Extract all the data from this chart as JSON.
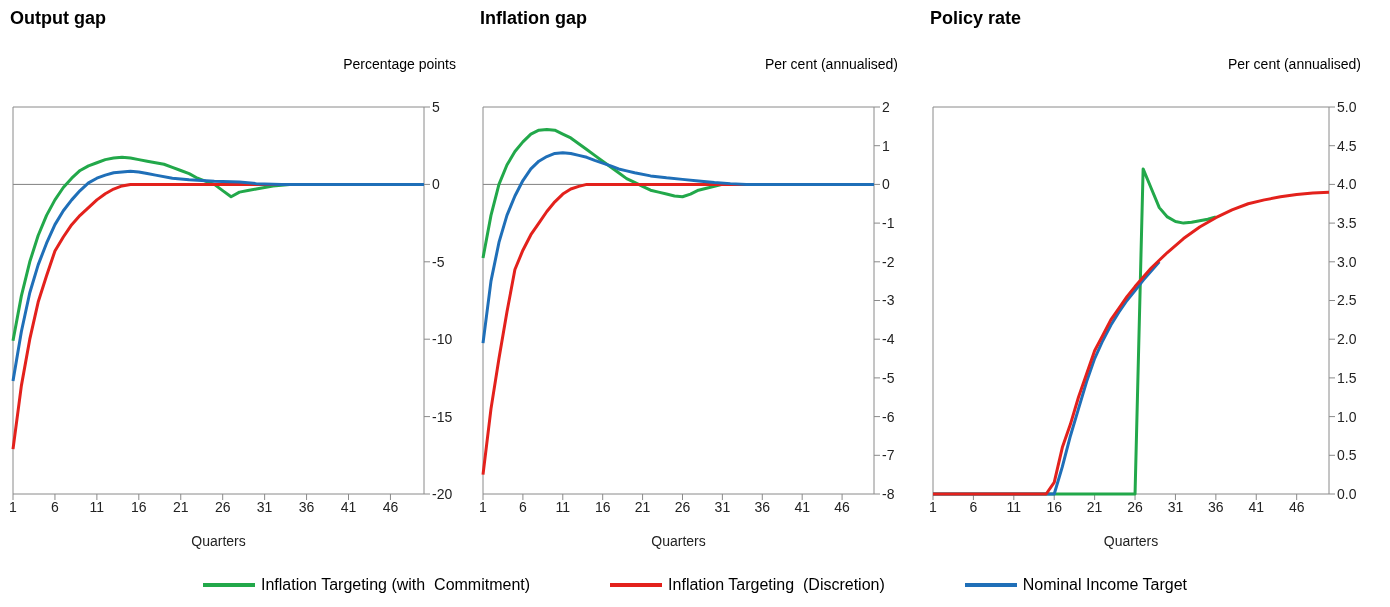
{
  "chart_data": [
    {
      "type": "line",
      "title": "Output gap",
      "xlabel": "Quarters",
      "ylabel": "Percentage points",
      "xlim": [
        1,
        50
      ],
      "xticks": [
        1,
        6,
        11,
        16,
        21,
        26,
        31,
        36,
        41,
        46
      ],
      "ylim": [
        -20,
        5
      ],
      "yticks": [
        -20,
        -15,
        -10,
        -5,
        0,
        5
      ],
      "grid": false,
      "legend": "bottom",
      "marker": "none",
      "line_style": "solid",
      "ref_lines": [
        {
          "axis": "y",
          "value": 0,
          "color": "#808080"
        }
      ],
      "series": [
        {
          "name": "Inflation Targeting (with  Commitment)",
          "color": "#22a84a",
          "x": [
            1,
            2,
            3,
            4,
            5,
            6,
            7,
            8,
            9,
            10,
            11,
            12,
            13,
            14,
            15,
            16,
            17,
            18,
            19,
            20,
            21,
            22,
            23,
            24,
            25,
            26,
            27,
            28,
            29,
            30,
            31,
            32,
            34,
            50
          ],
          "values": [
            -10.1,
            -7.2,
            -5.0,
            -3.3,
            -2.0,
            -1.0,
            -0.2,
            0.4,
            0.9,
            1.2,
            1.4,
            1.6,
            1.7,
            1.75,
            1.7,
            1.6,
            1.5,
            1.4,
            1.3,
            1.1,
            0.9,
            0.7,
            0.4,
            0.2,
            0,
            -0.4,
            -0.8,
            -0.5,
            -0.4,
            -0.3,
            -0.2,
            -0.1,
            0,
            0
          ]
        },
        {
          "name": "Inflation Targeting  (Discretion)",
          "color": "#e3211c",
          "x": [
            1,
            2,
            3,
            4,
            5,
            6,
            7,
            8,
            9,
            10,
            11,
            12,
            13,
            14,
            15,
            50
          ],
          "values": [
            -17.1,
            -13.0,
            -10.0,
            -7.6,
            -5.9,
            -4.3,
            -3.4,
            -2.6,
            -2.0,
            -1.5,
            -1.0,
            -0.6,
            -0.3,
            -0.1,
            0,
            0
          ]
        },
        {
          "name": "Nominal Income Target",
          "color": "#1f6fb8",
          "x": [
            1,
            2,
            3,
            4,
            5,
            6,
            7,
            8,
            9,
            10,
            11,
            12,
            13,
            14,
            15,
            16,
            17,
            18,
            20,
            22,
            25,
            28,
            30,
            33,
            50
          ],
          "values": [
            -12.7,
            -9.5,
            -7.0,
            -5.2,
            -3.8,
            -2.6,
            -1.7,
            -1.0,
            -0.4,
            0.1,
            0.4,
            0.6,
            0.75,
            0.8,
            0.85,
            0.8,
            0.7,
            0.6,
            0.4,
            0.3,
            0.2,
            0.15,
            0.05,
            0,
            0
          ]
        }
      ]
    },
    {
      "type": "line",
      "title": "Inflation gap",
      "xlabel": "Quarters",
      "ylabel": "Per cent (annualised)",
      "xlim": [
        1,
        50
      ],
      "xticks": [
        1,
        6,
        11,
        16,
        21,
        26,
        31,
        36,
        41,
        46
      ],
      "ylim": [
        -8,
        2
      ],
      "yticks": [
        -8,
        -7,
        -6,
        -5,
        -4,
        -3,
        -2,
        -1,
        0,
        1,
        2
      ],
      "grid": false,
      "marker": "none",
      "line_style": "solid",
      "ref_lines": [
        {
          "axis": "y",
          "value": 0,
          "color": "#808080"
        }
      ],
      "series": [
        {
          "color": "#22a84a",
          "x": [
            1,
            2,
            3,
            4,
            5,
            6,
            7,
            8,
            9,
            10,
            11,
            12,
            13,
            14,
            15,
            16,
            17,
            18,
            19,
            20,
            21,
            22,
            23,
            24,
            25,
            26,
            27,
            28,
            29,
            30,
            31,
            50
          ],
          "values": [
            -1.9,
            -0.8,
            0.0,
            0.5,
            0.85,
            1.1,
            1.3,
            1.4,
            1.42,
            1.4,
            1.3,
            1.2,
            1.05,
            0.9,
            0.75,
            0.6,
            0.45,
            0.3,
            0.15,
            0.05,
            -0.05,
            -0.15,
            -0.2,
            -0.25,
            -0.3,
            -0.32,
            -0.25,
            -0.15,
            -0.1,
            -0.05,
            0,
            0
          ]
        },
        {
          "color": "#e3211c",
          "x": [
            1,
            2,
            3,
            4,
            5,
            6,
            7,
            8,
            9,
            10,
            11,
            12,
            13,
            14,
            50
          ],
          "values": [
            -7.5,
            -5.8,
            -4.5,
            -3.3,
            -2.2,
            -1.7,
            -1.3,
            -1.0,
            -0.7,
            -0.45,
            -0.25,
            -0.12,
            -0.05,
            0,
            0
          ]
        },
        {
          "color": "#1f6fb8",
          "x": [
            1,
            2,
            3,
            4,
            5,
            6,
            7,
            8,
            9,
            10,
            11,
            12,
            13,
            14,
            15,
            16,
            17,
            18,
            19,
            20,
            22,
            24,
            26,
            28,
            30,
            32,
            34,
            50
          ],
          "values": [
            -4.1,
            -2.5,
            -1.5,
            -0.8,
            -0.3,
            0.1,
            0.4,
            0.6,
            0.72,
            0.8,
            0.82,
            0.8,
            0.75,
            0.7,
            0.62,
            0.55,
            0.48,
            0.4,
            0.35,
            0.3,
            0.22,
            0.17,
            0.13,
            0.09,
            0.05,
            0.02,
            0,
            0
          ]
        }
      ]
    },
    {
      "type": "line",
      "title": "Policy rate",
      "xlabel": "Quarters",
      "ylabel": "Per cent (annualised)",
      "xlim": [
        1,
        50
      ],
      "xticks": [
        1,
        6,
        11,
        16,
        21,
        26,
        31,
        36,
        41,
        46
      ],
      "ylim": [
        0,
        5
      ],
      "yticks": [
        {
          "value": 0,
          "label": "0.0"
        },
        {
          "value": 0.5,
          "label": "0.5"
        },
        {
          "value": 1,
          "label": "1.0"
        },
        {
          "value": 1.5,
          "label": "1.5"
        },
        {
          "value": 2,
          "label": "2.0"
        },
        {
          "value": 2.5,
          "label": "2.5"
        },
        {
          "value": 3,
          "label": "3.0"
        },
        {
          "value": 3.5,
          "label": "3.5"
        },
        {
          "value": 4,
          "label": "4.0"
        },
        {
          "value": 4.5,
          "label": "4.5"
        },
        {
          "value": 5,
          "label": "5.0"
        }
      ],
      "grid": false,
      "marker": "none",
      "line_style": "solid",
      "series": [
        {
          "color": "#22a84a",
          "x": [
            1,
            26,
            27,
            28,
            29,
            30,
            31,
            32,
            33,
            34,
            35,
            36
          ],
          "values": [
            0,
            0,
            4.2,
            3.95,
            3.7,
            3.58,
            3.52,
            3.5,
            3.51,
            3.53,
            3.55,
            3.58
          ]
        },
        {
          "color": "#1f6fb8",
          "x": [
            1,
            16,
            17,
            18,
            19,
            20,
            21,
            22,
            23,
            24,
            25,
            26,
            27,
            28,
            29
          ],
          "values": [
            0,
            0,
            0.35,
            0.75,
            1.1,
            1.45,
            1.75,
            1.98,
            2.18,
            2.35,
            2.5,
            2.63,
            2.76,
            2.88,
            3.0
          ]
        },
        {
          "color": "#e3211c",
          "x": [
            1,
            15,
            16,
            17,
            18,
            19,
            20,
            21,
            22,
            23,
            24,
            25,
            26,
            27,
            28,
            29,
            30,
            32,
            34,
            36,
            38,
            40,
            42,
            44,
            46,
            48,
            50
          ],
          "values": [
            0,
            0,
            0.15,
            0.6,
            0.9,
            1.25,
            1.55,
            1.85,
            2.05,
            2.25,
            2.4,
            2.55,
            2.68,
            2.8,
            2.92,
            3.02,
            3.12,
            3.3,
            3.45,
            3.57,
            3.67,
            3.75,
            3.8,
            3.84,
            3.87,
            3.89,
            3.9
          ]
        }
      ]
    }
  ]
}
